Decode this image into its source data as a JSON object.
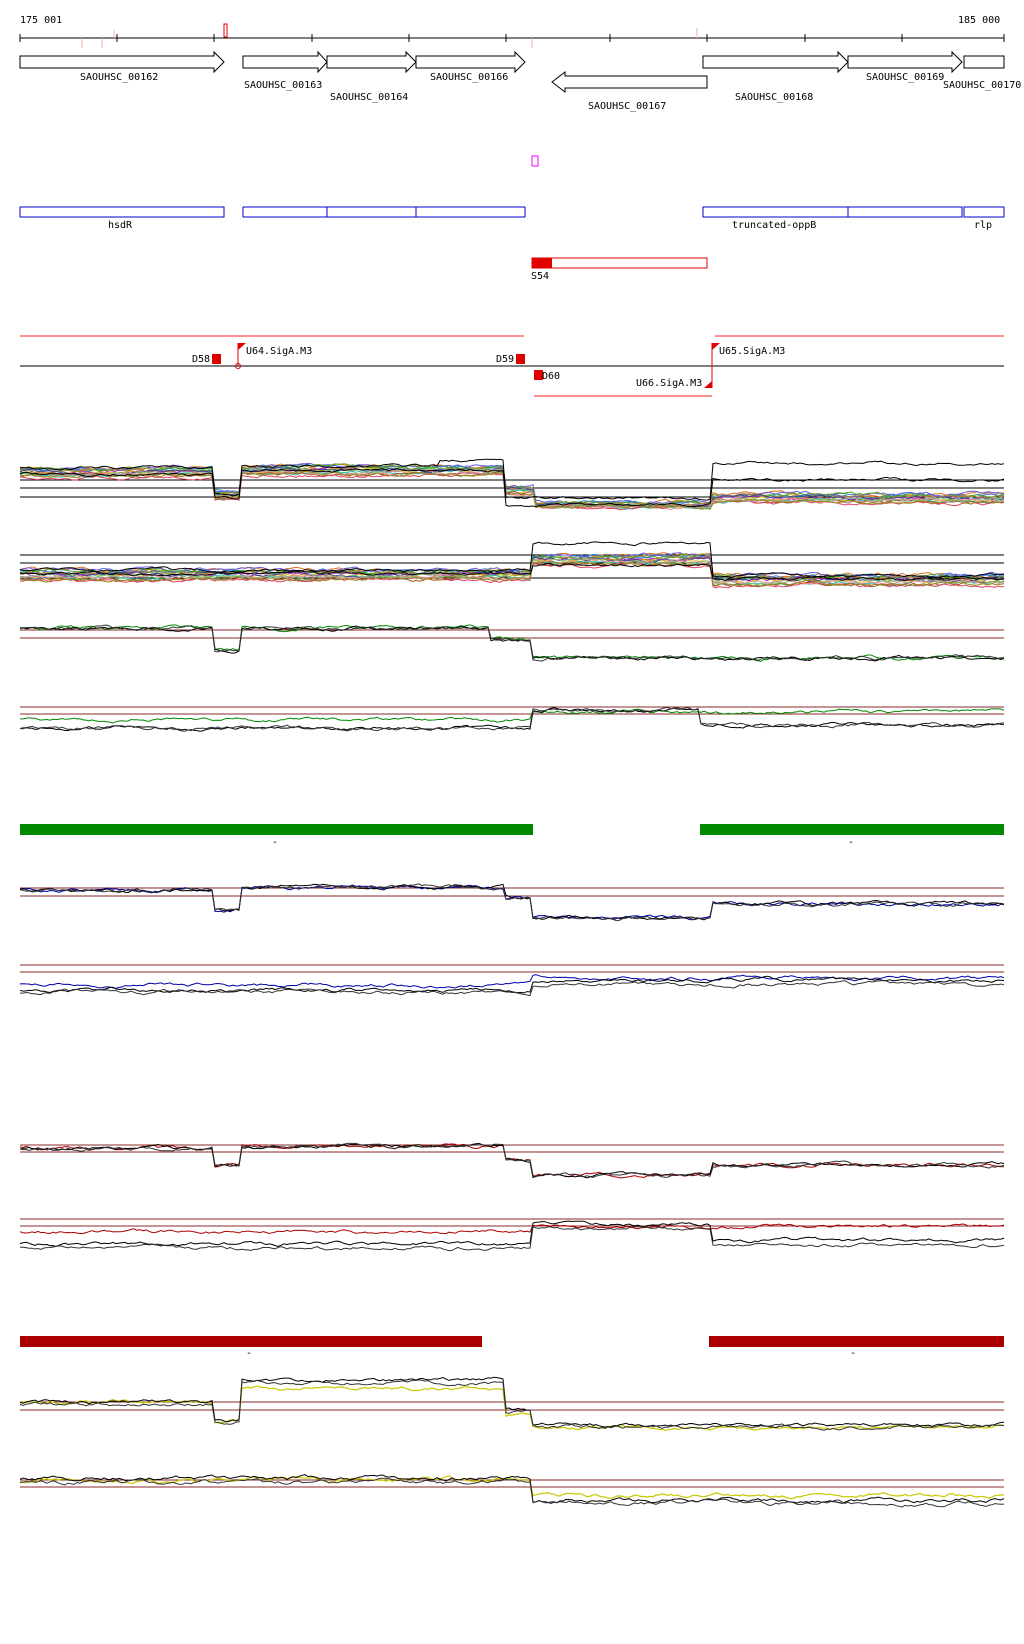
{
  "ruler": {
    "start_label": "175 001",
    "end_label": "185 000"
  },
  "genes": [
    {
      "name": "SAOUHSC_00162",
      "strand": "+"
    },
    {
      "name": "SAOUHSC_00163",
      "strand": "+"
    },
    {
      "name": "SAOUHSC_00164",
      "strand": "+"
    },
    {
      "name": "SAOUHSC_00166",
      "strand": "+"
    },
    {
      "name": "SAOUHSC_00167",
      "strand": "-"
    },
    {
      "name": "SAOUHSC_00168",
      "strand": "+"
    },
    {
      "name": "SAOUHSC_00169",
      "strand": "+"
    },
    {
      "name": "SAOUHSC_00170",
      "strand": "+"
    }
  ],
  "annotation_boxes": [
    {
      "label": "hsdR"
    },
    {
      "label": ""
    },
    {
      "label": "truncated-oppB"
    },
    {
      "label": "rlp"
    }
  ],
  "segment": {
    "label": "S54"
  },
  "promoters": [
    {
      "label": "D58"
    },
    {
      "label": "U64.SigA.M3"
    },
    {
      "label": "D59"
    },
    {
      "label": "D60"
    },
    {
      "label": "U66.SigA.M3"
    },
    {
      "label": "U65.SigA.M3"
    }
  ],
  "conditions": [
    {
      "name": "green",
      "color": "#008800",
      "bar_label": "-"
    },
    {
      "name": "blue",
      "color": "#0000aa"
    },
    {
      "name": "red",
      "color": "#aa0000",
      "bar_label": "-"
    },
    {
      "name": "yellow",
      "color": "#c8c800"
    }
  ],
  "colors": {
    "gene_stroke": "#000000",
    "annotation_stroke": "#0000cc",
    "promoter": "#e00000",
    "strand_line": "#ff2020",
    "threshold": "#8b2a2a",
    "marker": "#ff00ff"
  }
}
